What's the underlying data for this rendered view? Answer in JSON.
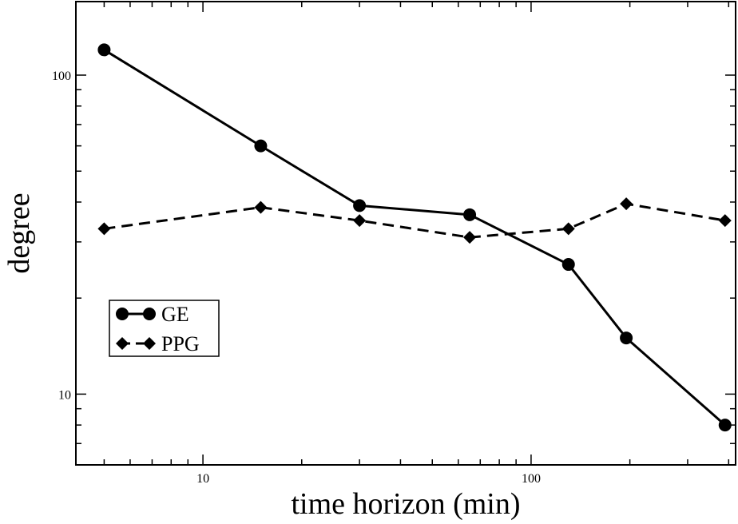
{
  "chart_data": {
    "type": "line",
    "xlabel": "time horizon (min)",
    "ylabel": "degree",
    "xscale": "log",
    "yscale": "log",
    "xlim": [
      4.1,
      420
    ],
    "ylim": [
      6,
      170
    ],
    "x_ticks": [
      {
        "value": 10,
        "label": "10"
      },
      {
        "value": 100,
        "label": "100"
      }
    ],
    "y_ticks": [
      {
        "value": 10,
        "label": "10"
      },
      {
        "value": 100,
        "label": "100"
      }
    ],
    "grid": false,
    "legend": "center-left",
    "x": [
      5,
      15,
      30,
      65,
      130,
      195,
      390
    ],
    "series": [
      {
        "name": "GE",
        "marker": "circle",
        "line": "solid",
        "values": [
          120,
          60,
          39,
          36.5,
          25.5,
          15,
          8
        ]
      },
      {
        "name": "PPG",
        "marker": "diamond",
        "line": "dashed",
        "values": [
          33,
          38.5,
          35,
          31,
          33,
          39.5,
          35
        ]
      }
    ]
  }
}
